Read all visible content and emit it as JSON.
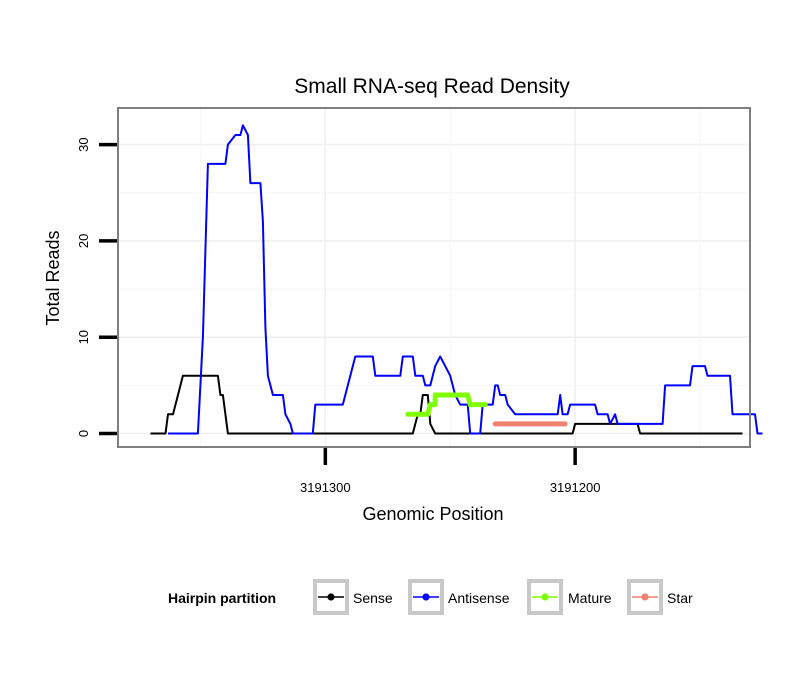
{
  "chart_data": {
    "type": "line",
    "title": "Small RNA-seq Read Density",
    "xlabel": "Genomic Position",
    "ylabel": "Total Reads",
    "x_reversed": true,
    "xlim": [
      3191383,
      3191130
    ],
    "ylim": [
      -1.4,
      33.8
    ],
    "x_ticks": [
      3191300,
      3191200
    ],
    "x_tick_labels": [
      "3191300",
      "3191200"
    ],
    "y_ticks": [
      0,
      10,
      20,
      30
    ],
    "y_tick_labels": [
      "0",
      "10",
      "20",
      "30"
    ],
    "grid": true,
    "legend_position": "bottom",
    "legend_title": "Hairpin partition",
    "series": [
      {
        "name": "Sense",
        "color": "#000000",
        "points": [
          [
            3191370,
            0
          ],
          [
            3191364,
            0
          ],
          [
            3191363,
            2
          ],
          [
            3191361,
            2
          ],
          [
            3191360,
            3
          ],
          [
            3191359,
            4
          ],
          [
            3191357,
            6
          ],
          [
            3191343,
            6
          ],
          [
            3191342,
            4
          ],
          [
            3191341,
            4
          ],
          [
            3191339,
            0
          ],
          [
            3191265,
            0
          ],
          [
            3191263,
            2
          ],
          [
            3191262,
            2
          ],
          [
            3191261,
            4
          ],
          [
            3191259,
            4
          ],
          [
            3191258,
            1
          ],
          [
            3191256,
            0
          ],
          [
            3191201,
            0
          ],
          [
            3191200,
            1
          ],
          [
            3191175,
            1
          ],
          [
            3191174,
            0
          ],
          [
            3191133,
            0
          ]
        ]
      },
      {
        "name": "Antisense",
        "color": "#0000ff",
        "points": [
          [
            3191363,
            0
          ],
          [
            3191351,
            0
          ],
          [
            3191349,
            10
          ],
          [
            3191347,
            28
          ],
          [
            3191340,
            28
          ],
          [
            3191339,
            30
          ],
          [
            3191336,
            31
          ],
          [
            3191334,
            31
          ],
          [
            3191333,
            32
          ],
          [
            3191331,
            31
          ],
          [
            3191330,
            26
          ],
          [
            3191326,
            26
          ],
          [
            3191325,
            22
          ],
          [
            3191324,
            11
          ],
          [
            3191323,
            6
          ],
          [
            3191321,
            4
          ],
          [
            3191317,
            4
          ],
          [
            3191316,
            2
          ],
          [
            3191314,
            1
          ],
          [
            3191313,
            0
          ],
          [
            3191305,
            0
          ],
          [
            3191304,
            3
          ],
          [
            3191293,
            3
          ],
          [
            3191292,
            4
          ],
          [
            3191291,
            5
          ],
          [
            3191289,
            7
          ],
          [
            3191288,
            8
          ],
          [
            3191281,
            8
          ],
          [
            3191280,
            6
          ],
          [
            3191270,
            6
          ],
          [
            3191269,
            8
          ],
          [
            3191265,
            8
          ],
          [
            3191264,
            6
          ],
          [
            3191261,
            6
          ],
          [
            3191260,
            5
          ],
          [
            3191258,
            5
          ],
          [
            3191256,
            7
          ],
          [
            3191254,
            8
          ],
          [
            3191252,
            7
          ],
          [
            3191250,
            6
          ],
          [
            3191248,
            4
          ],
          [
            3191246,
            3
          ],
          [
            3191243,
            3
          ],
          [
            3191242,
            0
          ],
          [
            3191238,
            0
          ],
          [
            3191237,
            3
          ],
          [
            3191233,
            3
          ],
          [
            3191232,
            5
          ],
          [
            3191231,
            5
          ],
          [
            3191230,
            4
          ],
          [
            3191228,
            4
          ],
          [
            3191227,
            3
          ],
          [
            3191224,
            2
          ],
          [
            3191207,
            2
          ],
          [
            3191206,
            4
          ],
          [
            3191205,
            2
          ],
          [
            3191203,
            2
          ],
          [
            3191202,
            3
          ],
          [
            3191192,
            3
          ],
          [
            3191191,
            2
          ],
          [
            3191187,
            2
          ],
          [
            3191186,
            1
          ],
          [
            3191184,
            2
          ],
          [
            3191183,
            1
          ],
          [
            3191165,
            1
          ],
          [
            3191164,
            5
          ],
          [
            3191154,
            5
          ],
          [
            3191153,
            7
          ],
          [
            3191148,
            7
          ],
          [
            3191147,
            6
          ],
          [
            3191138,
            6
          ],
          [
            3191137,
            2
          ],
          [
            3191128,
            2
          ],
          [
            3191127,
            0
          ],
          [
            3191125,
            0
          ]
        ]
      },
      {
        "name": "Mature",
        "color": "#7fff00",
        "points": [
          [
            3191267,
            2
          ],
          [
            3191259,
            2
          ],
          [
            3191258,
            3
          ],
          [
            3191256,
            3
          ],
          [
            3191256,
            4
          ],
          [
            3191243,
            4
          ],
          [
            3191242,
            3
          ],
          [
            3191236,
            3
          ]
        ]
      },
      {
        "name": "Star",
        "color": "#f08070",
        "points": [
          [
            3191232,
            1
          ],
          [
            3191204,
            1
          ]
        ]
      }
    ]
  }
}
